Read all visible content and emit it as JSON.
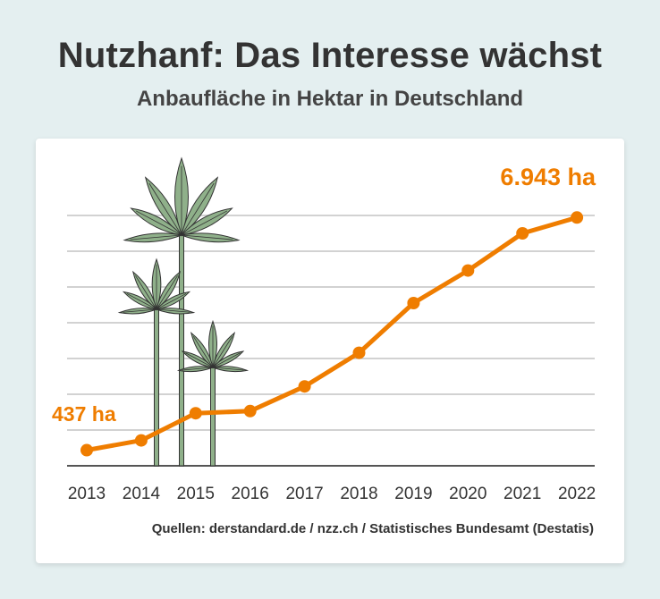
{
  "title": "Nutzhanf: Das Interesse wächst",
  "subtitle": "Anbaufläche in Hektar in Deutschland",
  "source": "Quellen: derstandard.de / nzz.ch / Statistisches Bundesamt (Destatis)",
  "colors": {
    "background": "#e4eff0",
    "line": "#ef7d00",
    "grid": "#c4c4c4",
    "axis": "#555555",
    "leaf": "#8fb08a",
    "leaf_outline": "#333333"
  },
  "chart_data": {
    "type": "line",
    "title": "Nutzhanf: Das Interesse wächst",
    "subtitle": "Anbaufläche in Hektar in Deutschland",
    "xlabel": "",
    "ylabel": "",
    "categories": [
      "2013",
      "2014",
      "2015",
      "2016",
      "2017",
      "2018",
      "2019",
      "2020",
      "2021",
      "2022"
    ],
    "series": [
      {
        "name": "Anbaufläche (ha)",
        "values": [
          437,
          710,
          1470,
          1530,
          2220,
          3160,
          4550,
          5460,
          6500,
          6943
        ]
      }
    ],
    "annotations": [
      {
        "label": "437 ha",
        "category": "2013"
      },
      {
        "label": "6.943 ha",
        "category": "2022"
      }
    ],
    "ylim": [
      0,
      7000
    ],
    "grid": true,
    "legend": "none"
  }
}
